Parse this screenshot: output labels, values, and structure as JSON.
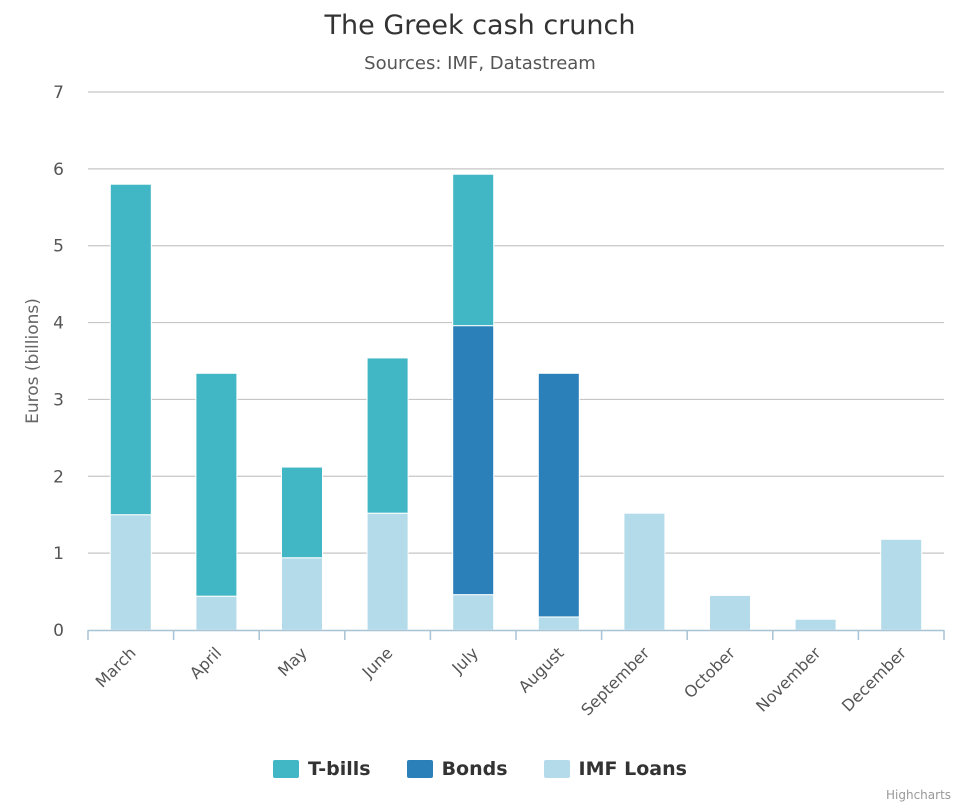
{
  "chart_data": {
    "type": "bar",
    "stacked": true,
    "title": "The Greek cash crunch",
    "subtitle": "Sources: IMF, Datastream",
    "ylabel": "Euros (billions)",
    "ylim": [
      0,
      7
    ],
    "yticks": [
      "0",
      "1",
      "2",
      "3",
      "4",
      "5",
      "6",
      "7"
    ],
    "categories": [
      "March",
      "April",
      "May",
      "June",
      "July",
      "August",
      "September",
      "October",
      "November",
      "December"
    ],
    "series": [
      {
        "name": "IMF Loans",
        "color": "#b3dbe9",
        "values": [
          1.5,
          0.44,
          0.94,
          1.52,
          0.46,
          0.17,
          1.52,
          0.45,
          0.14,
          1.18
        ]
      },
      {
        "name": "Bonds",
        "color": "#2b80b9",
        "values": [
          0,
          0,
          0,
          0,
          3.5,
          3.17,
          0,
          0,
          0,
          0
        ]
      },
      {
        "name": "T-bills",
        "color": "#41b6c4",
        "values": [
          4.3,
          2.9,
          1.18,
          2.02,
          1.97,
          0,
          0,
          0,
          0,
          0
        ]
      }
    ],
    "legend": {
      "placement": "bottom",
      "items": [
        "T-bills",
        "Bonds",
        "IMF Loans"
      ]
    },
    "grid": true
  },
  "legend_colors": {
    "T-bills": "#41b6c4",
    "Bonds": "#2b80b9",
    "IMF Loans": "#b3dbe9"
  },
  "credits": "Highcharts"
}
